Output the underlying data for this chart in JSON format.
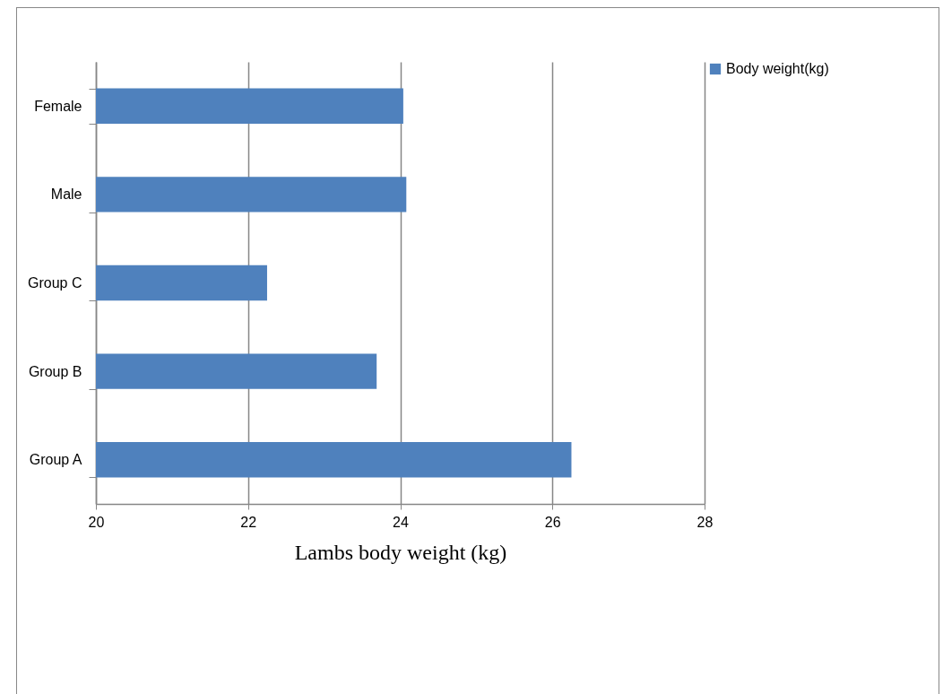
{
  "chart_data": {
    "type": "bar",
    "orientation": "horizontal",
    "xlabel": "Lambs body weight (kg)",
    "categories": [
      "Female",
      "Male",
      "Group C",
      "Group B",
      "Group A"
    ],
    "series": [
      {
        "name": "Body weight(kg)",
        "color": "#4f81bd",
        "values": [
          24.04,
          24.08,
          22.25,
          23.69,
          26.25
        ]
      }
    ],
    "xlim": [
      20,
      28
    ],
    "xticks": [
      20,
      22,
      24,
      26,
      28
    ],
    "grid": "x",
    "legend": "right"
  }
}
